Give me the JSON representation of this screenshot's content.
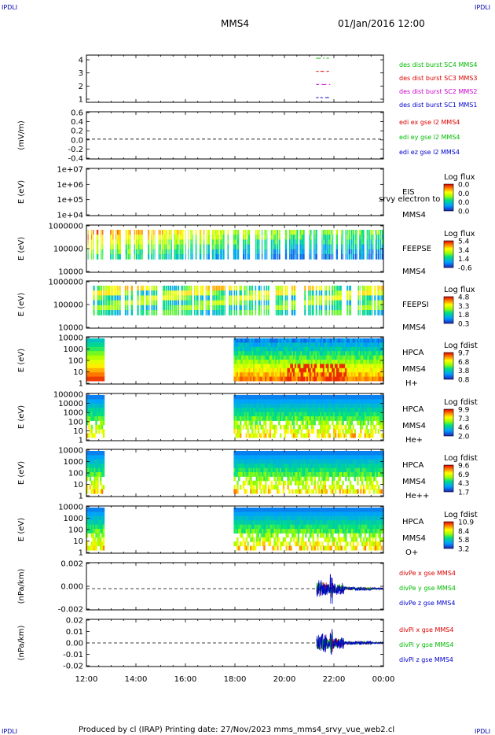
{
  "corner_tag": "IPDLI",
  "header": {
    "spacecraft": "MMS4",
    "datetime": "01/Jan/2016 12:00"
  },
  "footer": "Produced by cl (IRAP)   Printing date: 27/Nov/2023   mms_mms4_srvy_vue_web2.cl",
  "x_ticks": [
    "12:00",
    "14:00",
    "16:00",
    "18:00",
    "20:00",
    "22:00",
    "00:00"
  ],
  "chart_data": [
    {
      "id": "burst",
      "type": "line",
      "ylabel": "",
      "y_ticks": [
        "4",
        "3",
        "2",
        "1"
      ],
      "series": [
        {
          "name": "des dist burst SC1 MMS1",
          "color": "#0000cc",
          "y": 1,
          "segments": [
            [
              21.28,
              21.38
            ],
            [
              21.45,
              21.55
            ],
            [
              21.65,
              21.8
            ]
          ]
        },
        {
          "name": "des dist burst SC2 MMS2",
          "color": "#cc00cc",
          "y": 2,
          "segments": [
            [
              21.28,
              21.4
            ],
            [
              21.5,
              21.7
            ],
            [
              21.8,
              21.85
            ]
          ]
        },
        {
          "name": "des dist burst SC3 MMS3",
          "color": "#dd0000",
          "y": 3,
          "segments": [
            [
              21.28,
              21.38
            ],
            [
              21.45,
              21.6
            ],
            [
              21.7,
              21.8
            ]
          ]
        },
        {
          "name": "des dist burst SC4 MMS4",
          "color": "#00bb00",
          "y": 4,
          "segments": [
            [
              21.28,
              21.62
            ],
            [
              21.7,
              21.8
            ]
          ]
        }
      ]
    },
    {
      "id": "edi",
      "type": "line",
      "ylabel": "(mV/m)",
      "y_ticks": [
        "0.6",
        "0.4",
        "0.2",
        "0.0",
        "-0.2",
        "-0.4"
      ],
      "series": [
        {
          "name": "edi ex gse l2 MMS4",
          "color": "#dd0000"
        },
        {
          "name": "edi ey gse l2 MMS4",
          "color": "#00bb00"
        },
        {
          "name": "edi ez gse l2 MMS4",
          "color": "#0000cc"
        }
      ]
    },
    {
      "id": "eis",
      "type": "heatmap",
      "ylabel": "E (eV)",
      "y_ticks": [
        "1e+07",
        "1e+06",
        "1e+05",
        "1e+04"
      ],
      "label": "EIS",
      "overlay": "srvy electron to",
      "sublabel": "MMS4",
      "colorbar": {
        "title": "Log flux",
        "ticks": [
          "0.0",
          "0.0",
          "0.0",
          "0.0"
        ]
      }
    },
    {
      "id": "feeps_e",
      "type": "heatmap",
      "ylabel": "E (eV)",
      "y_ticks": [
        "1000000",
        "100000",
        "10000"
      ],
      "label": "FEEPSE",
      "sublabel": "MMS4",
      "colorbar": {
        "title": "Log flux",
        "ticks": [
          "5.4",
          "3.4",
          "1.4",
          "-0.6"
        ]
      }
    },
    {
      "id": "feeps_i",
      "type": "heatmap",
      "ylabel": "E (eV)",
      "y_ticks": [
        "1000000",
        "100000",
        "10000"
      ],
      "label": "FEEPSI",
      "sublabel": "MMS4",
      "colorbar": {
        "title": "Log flux",
        "ticks": [
          "4.8",
          "3.3",
          "1.8",
          "0.3"
        ]
      }
    },
    {
      "id": "hpca_h",
      "type": "heatmap",
      "ylabel": "E (eV)",
      "y_ticks": [
        "10000",
        "1000",
        "100",
        "10",
        "1"
      ],
      "label": "HPCA",
      "sublabel": "MMS4",
      "species": "H+",
      "colorbar": {
        "title": "Log fdist",
        "ticks": [
          "9.7",
          "6.8",
          "3.8",
          "0.8"
        ]
      }
    },
    {
      "id": "hpca_he",
      "type": "heatmap",
      "ylabel": "E (eV)",
      "y_ticks": [
        "100000",
        "10000",
        "1000",
        "100",
        "10",
        "1"
      ],
      "label": "HPCA",
      "sublabel": "MMS4",
      "species": "He+",
      "colorbar": {
        "title": "Log fdist",
        "ticks": [
          "9.9",
          "7.3",
          "4.6",
          "2.0"
        ]
      }
    },
    {
      "id": "hpca_hepp",
      "type": "heatmap",
      "ylabel": "E (eV)",
      "y_ticks": [
        "10000",
        "1000",
        "100",
        "10",
        "1"
      ],
      "label": "HPCA",
      "sublabel": "MMS4",
      "species": "He++",
      "colorbar": {
        "title": "Log fdist",
        "ticks": [
          "9.6",
          "6.9",
          "4.3",
          "1.7"
        ]
      }
    },
    {
      "id": "hpca_o",
      "type": "heatmap",
      "ylabel": "E (eV)",
      "y_ticks": [
        "10000",
        "1000",
        "100",
        "10",
        "1"
      ],
      "label": "HPCA",
      "sublabel": "MMS4",
      "species": "O+",
      "colorbar": {
        "title": "Log fdist",
        "ticks": [
          "10.9",
          "8.4",
          "5.8",
          "3.2"
        ]
      }
    },
    {
      "id": "divpe",
      "type": "line",
      "ylabel": "(nPa/km)",
      "y_ticks": [
        "0.002",
        "0.000",
        "-0.002"
      ],
      "series": [
        {
          "name": "divPe x gse MMS4",
          "color": "#dd0000"
        },
        {
          "name": "divPe y gse MMS4",
          "color": "#00bb00"
        },
        {
          "name": "divPe z gse MMS4",
          "color": "#0000cc"
        }
      ]
    },
    {
      "id": "divpi",
      "type": "line",
      "ylabel": "(nPa/km)",
      "y_ticks": [
        "0.02",
        "0.01",
        "0.00",
        "-0.01",
        "-0.02"
      ],
      "series": [
        {
          "name": "divPi x gse MMS4",
          "color": "#dd0000"
        },
        {
          "name": "divPi y gse MMS4",
          "color": "#00bb00"
        },
        {
          "name": "divPi z gse MMS4",
          "color": "#0000cc"
        }
      ]
    }
  ]
}
